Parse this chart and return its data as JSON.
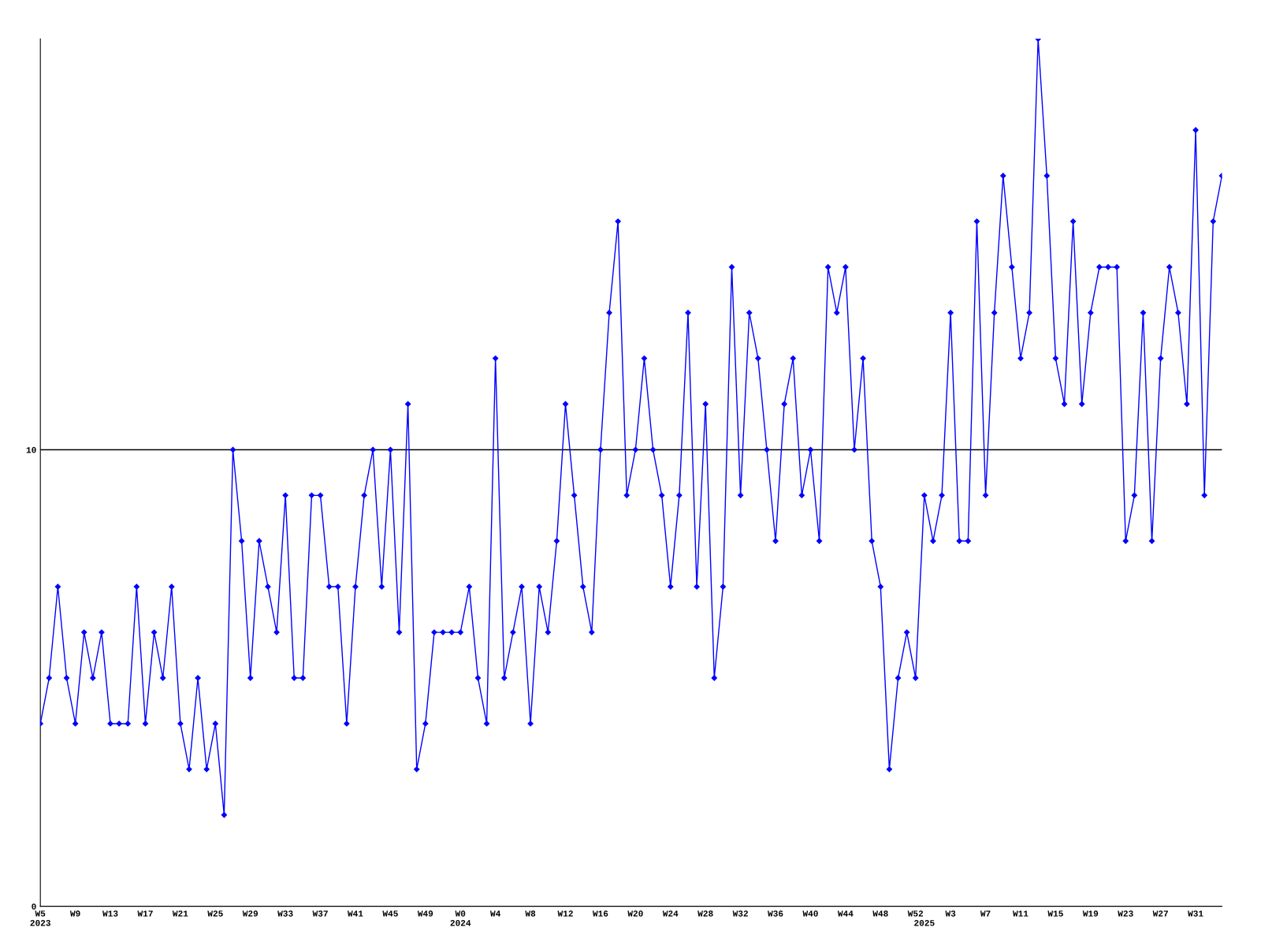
{
  "chart_data": {
    "type": "line",
    "categories": [
      "W5\n2023",
      null,
      null,
      null,
      "W9",
      null,
      null,
      null,
      "W13",
      null,
      null,
      null,
      "W17",
      null,
      null,
      null,
      "W21",
      null,
      null,
      null,
      "W25",
      null,
      null,
      null,
      "W29",
      null,
      null,
      null,
      "W33",
      null,
      null,
      null,
      "W37",
      null,
      null,
      null,
      "W41",
      null,
      null,
      null,
      "W45",
      null,
      null,
      null,
      "W49",
      null,
      null,
      null,
      "W0\n2024",
      null,
      null,
      null,
      "W4",
      null,
      null,
      null,
      "W8",
      null,
      null,
      null,
      "W12",
      null,
      null,
      null,
      "W16",
      null,
      null,
      null,
      "W20",
      null,
      null,
      null,
      "W24",
      null,
      null,
      null,
      "W28",
      null,
      null,
      null,
      "W32",
      null,
      null,
      null,
      "W36",
      null,
      null,
      null,
      "W40",
      null,
      null,
      null,
      "W44",
      null,
      null,
      null,
      "W48",
      null,
      null,
      null,
      "W52",
      "\n2025",
      null,
      null,
      "W3",
      null,
      null,
      null,
      "W7",
      null,
      null,
      null,
      "W11",
      null,
      null,
      null,
      "W15",
      null,
      null,
      null,
      "W19",
      null,
      null,
      null,
      "W23",
      null,
      null,
      null,
      "W27",
      null,
      null,
      null,
      "W31",
      null,
      null,
      null
    ],
    "series": [
      {
        "color": "#0000ff",
        "values": [
          4,
          5,
          7,
          5,
          4,
          6,
          5,
          6,
          4,
          4,
          4,
          7,
          4,
          6,
          5,
          7,
          4,
          3,
          5,
          3,
          4,
          2,
          10,
          8,
          5,
          8,
          7,
          6,
          9,
          5,
          5,
          9,
          9,
          7,
          7,
          4,
          7,
          9,
          10,
          7,
          10,
          6,
          11,
          3,
          4,
          6,
          6,
          6,
          6,
          7,
          5,
          4,
          12,
          5,
          6,
          7,
          4,
          7,
          6,
          8,
          11,
          9,
          7,
          6,
          10,
          13,
          15,
          9,
          10,
          12,
          10,
          9,
          7,
          9,
          13,
          7,
          11,
          5,
          7,
          14,
          9,
          13,
          12,
          10,
          8,
          11,
          12,
          9,
          10,
          8,
          14,
          13,
          14,
          10,
          12,
          8,
          7,
          3,
          5,
          6,
          5,
          9,
          8,
          9,
          13,
          8,
          8,
          15,
          9,
          13,
          16,
          14,
          12,
          13,
          19,
          16,
          12,
          11,
          15,
          11,
          13,
          14,
          14,
          14,
          8,
          9,
          13,
          8,
          12,
          14,
          13,
          11,
          17,
          9,
          15,
          16
        ]
      }
    ],
    "ylim": [
      0,
      19
    ],
    "yticks": [
      0,
      10
    ],
    "grid": "y",
    "marker": "diamond",
    "line_style": "solid"
  }
}
